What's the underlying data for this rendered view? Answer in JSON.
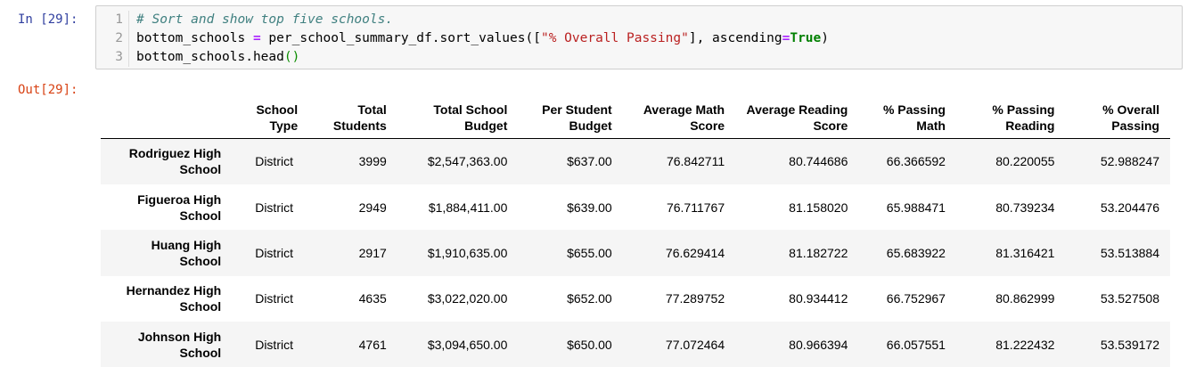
{
  "notebook": {
    "in_prompt": "In [29]:",
    "out_prompt": "Out[29]:",
    "code_lines": [
      {
        "n": "1"
      },
      {
        "n": "2"
      },
      {
        "n": "3"
      }
    ],
    "code": {
      "comment": "# Sort and show top five schools.",
      "l2_var": "bottom_schools ",
      "l2_eq": "=",
      "l2_call": " per_school_summary_df.sort_values([",
      "l2_str": "\"% Overall Passing\"",
      "l2_mid": "], ascending",
      "l2_eq2": "=",
      "l2_true": "True",
      "l2_end": ")",
      "l3_call": "bottom_schools.head",
      "l3_paren": "()"
    }
  },
  "table": {
    "headers": [
      "",
      "School\nType",
      "Total\nStudents",
      "Total School\nBudget",
      "Per Student\nBudget",
      "Average Math\nScore",
      "Average Reading\nScore",
      "% Passing\nMath",
      "% Passing\nReading",
      "% Overall\nPassing"
    ],
    "rows": [
      {
        "name": "Rodriguez High\nSchool",
        "cells": [
          "District",
          "3999",
          "$2,547,363.00",
          "$637.00",
          "76.842711",
          "80.744686",
          "66.366592",
          "80.220055",
          "52.988247"
        ]
      },
      {
        "name": "Figueroa High\nSchool",
        "cells": [
          "District",
          "2949",
          "$1,884,411.00",
          "$639.00",
          "76.711767",
          "81.158020",
          "65.988471",
          "80.739234",
          "53.204476"
        ]
      },
      {
        "name": "Huang High\nSchool",
        "cells": [
          "District",
          "2917",
          "$1,910,635.00",
          "$655.00",
          "76.629414",
          "81.182722",
          "65.683922",
          "81.316421",
          "53.513884"
        ]
      },
      {
        "name": "Hernandez High\nSchool",
        "cells": [
          "District",
          "4635",
          "$3,022,020.00",
          "$652.00",
          "77.289752",
          "80.934412",
          "66.752967",
          "80.862999",
          "53.527508"
        ]
      },
      {
        "name": "Johnson High\nSchool",
        "cells": [
          "District",
          "4761",
          "$3,094,650.00",
          "$650.00",
          "77.072464",
          "80.966394",
          "66.057551",
          "81.222432",
          "53.539172"
        ]
      }
    ]
  }
}
